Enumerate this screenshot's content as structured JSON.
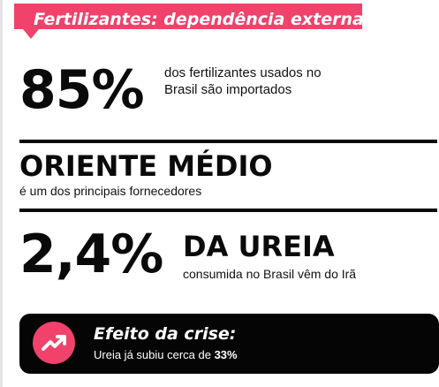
{
  "header": {
    "title": "Fertilizantes: dependência externa"
  },
  "stat_import": {
    "value": "85%",
    "description": "dos fertilizantes usados no Brasil são importados"
  },
  "supplier": {
    "title": "ORIENTE MÉDIO",
    "description": "é um dos principais fornecedores"
  },
  "stat_urea": {
    "value": "2,4%",
    "title": "DA UREIA",
    "description": "consumida no Brasil vêm do Irã"
  },
  "crisis": {
    "icon": "trending-up-icon",
    "title": "Efeito da crise:",
    "text_prefix": "Ureia já subiu cerca de ",
    "text_value": "33%"
  },
  "colors": {
    "accent": "#f0426b",
    "dark": "#050505",
    "text": "#0a0a0a"
  }
}
